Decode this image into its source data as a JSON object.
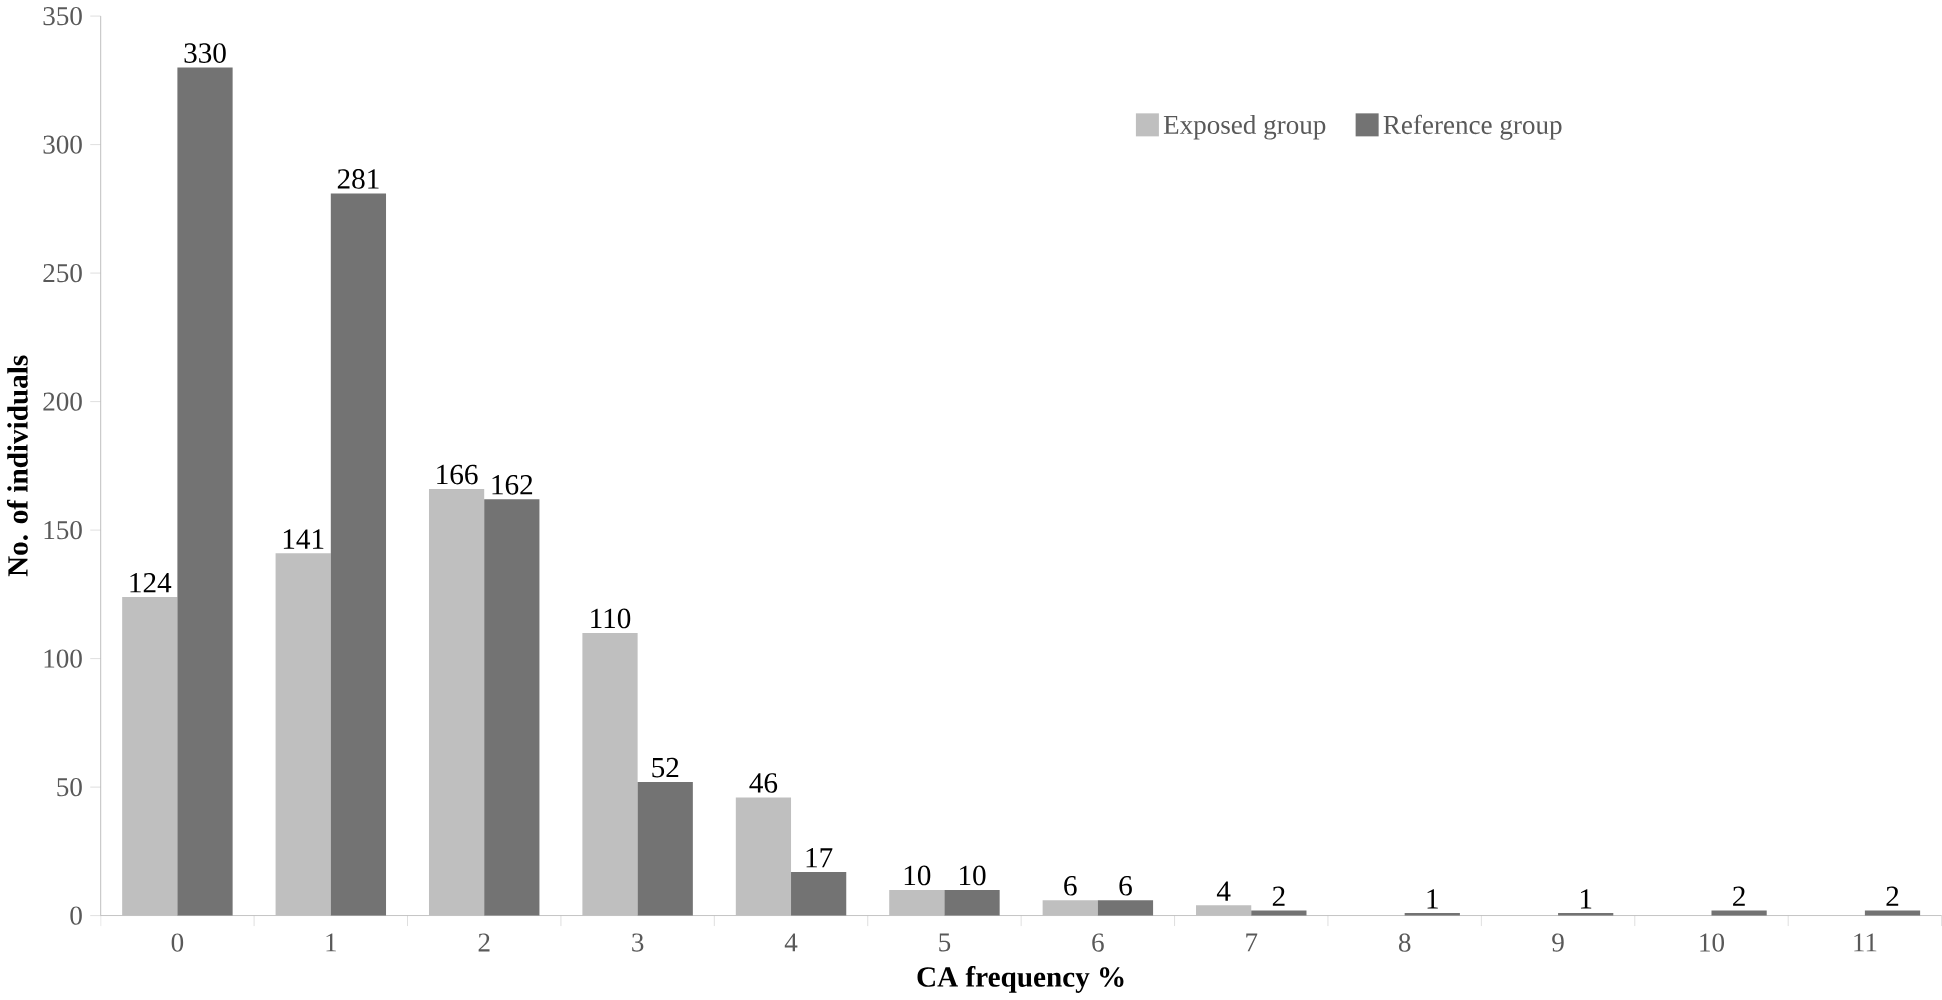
{
  "chart_data": {
    "type": "bar",
    "xlabel": "CA frequency %",
    "ylabel": "No. of individuals",
    "categories": [
      "0",
      "1",
      "2",
      "3",
      "4",
      "5",
      "6",
      "7",
      "8",
      "9",
      "10",
      "11"
    ],
    "series": [
      {
        "name": "Exposed group",
        "color": "#bfbfbf",
        "values": [
          124,
          141,
          166,
          110,
          46,
          10,
          6,
          4,
          0,
          0,
          0,
          0
        ],
        "value_labels": [
          "124",
          "141",
          "166",
          "110",
          "46",
          "10",
          "6",
          "4",
          null,
          null,
          null,
          null
        ]
      },
      {
        "name": "Reference group",
        "color": "#737373",
        "values": [
          330,
          281,
          162,
          52,
          17,
          10,
          6,
          2,
          1,
          1,
          2,
          2
        ],
        "value_labels": [
          "330",
          "281",
          "162",
          "52",
          "17",
          "10",
          "6",
          "2",
          "1",
          "1",
          "2",
          "2"
        ]
      }
    ],
    "ylim": [
      0,
      350
    ],
    "yticks": [
      0,
      50,
      100,
      150,
      200,
      250,
      300,
      350
    ],
    "grid": false,
    "legend": "top right"
  }
}
